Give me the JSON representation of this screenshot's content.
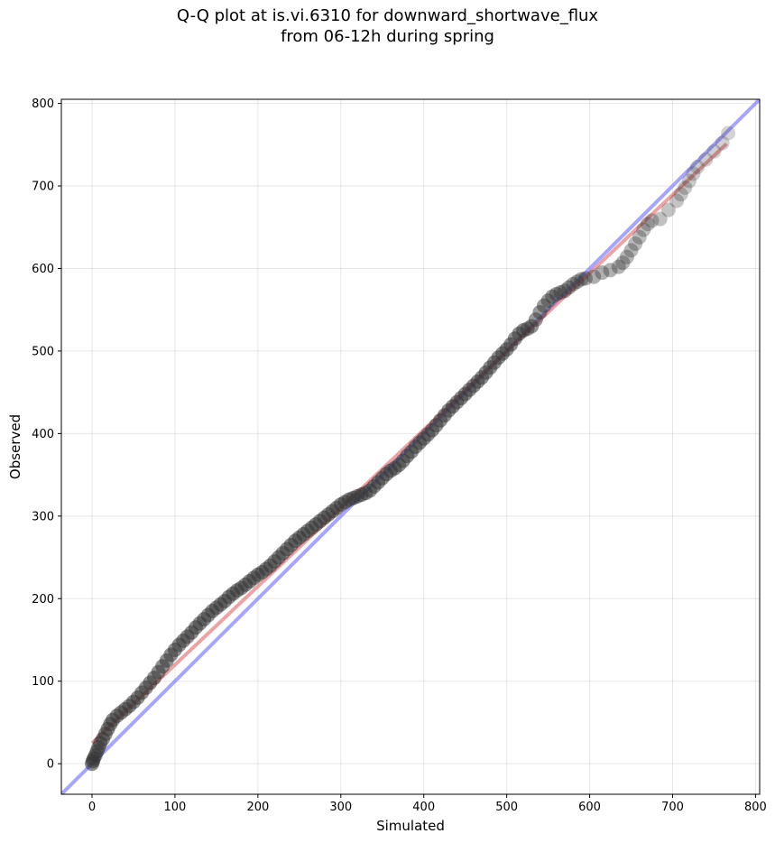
{
  "chart_data": {
    "type": "scatter",
    "title_lines": [
      "Q-Q plot at is.vi.6310 for downward_shortwave_flux",
      "from 06-12h during spring"
    ],
    "xlabel": "Simulated",
    "ylabel": "Observed",
    "xlim": [
      -37,
      805
    ],
    "ylim": [
      -37,
      805
    ],
    "x_ticks": [
      0,
      100,
      200,
      300,
      400,
      500,
      600,
      700,
      800
    ],
    "y_ticks": [
      0,
      100,
      200,
      300,
      400,
      500,
      600,
      700,
      800
    ],
    "grid": true,
    "series": [
      {
        "marker": "circle",
        "color": "#333333",
        "points": [
          [
            0,
            0
          ],
          [
            1,
            3
          ],
          [
            2,
            6
          ],
          [
            4,
            10
          ],
          [
            6,
            15
          ],
          [
            8,
            20
          ],
          [
            10,
            25
          ],
          [
            13,
            30
          ],
          [
            16,
            36
          ],
          [
            19,
            42
          ],
          [
            22,
            48
          ],
          [
            25,
            53
          ],
          [
            30,
            58
          ],
          [
            35,
            62
          ],
          [
            40,
            66
          ],
          [
            45,
            70
          ],
          [
            50,
            75
          ],
          [
            55,
            80
          ],
          [
            60,
            86
          ],
          [
            65,
            92
          ],
          [
            70,
            98
          ],
          [
            75,
            104
          ],
          [
            80,
            111
          ],
          [
            85,
            118
          ],
          [
            90,
            125
          ],
          [
            95,
            132
          ],
          [
            100,
            138
          ],
          [
            105,
            144
          ],
          [
            110,
            149
          ],
          [
            115,
            154
          ],
          [
            120,
            159
          ],
          [
            125,
            165
          ],
          [
            130,
            170
          ],
          [
            135,
            175
          ],
          [
            140,
            180
          ],
          [
            145,
            185
          ],
          [
            150,
            189
          ],
          [
            155,
            193
          ],
          [
            160,
            197
          ],
          [
            165,
            202
          ],
          [
            170,
            206
          ],
          [
            175,
            210
          ],
          [
            180,
            213
          ],
          [
            185,
            217
          ],
          [
            190,
            221
          ],
          [
            195,
            225
          ],
          [
            200,
            229
          ],
          [
            205,
            232
          ],
          [
            210,
            236
          ],
          [
            215,
            240
          ],
          [
            220,
            245
          ],
          [
            225,
            250
          ],
          [
            230,
            255
          ],
          [
            235,
            260
          ],
          [
            240,
            265
          ],
          [
            245,
            270
          ],
          [
            250,
            274
          ],
          [
            255,
            278
          ],
          [
            260,
            282
          ],
          [
            265,
            286
          ],
          [
            270,
            290
          ],
          [
            275,
            294
          ],
          [
            280,
            298
          ],
          [
            285,
            302
          ],
          [
            290,
            306
          ],
          [
            295,
            310
          ],
          [
            300,
            314
          ],
          [
            305,
            317
          ],
          [
            310,
            320
          ],
          [
            315,
            322
          ],
          [
            320,
            324
          ],
          [
            325,
            326
          ],
          [
            330,
            328
          ],
          [
            335,
            331
          ],
          [
            340,
            336
          ],
          [
            345,
            341
          ],
          [
            350,
            346
          ],
          [
            355,
            351
          ],
          [
            360,
            355
          ],
          [
            365,
            358
          ],
          [
            370,
            362
          ],
          [
            375,
            367
          ],
          [
            380,
            373
          ],
          [
            385,
            378
          ],
          [
            390,
            384
          ],
          [
            395,
            389
          ],
          [
            400,
            394
          ],
          [
            405,
            399
          ],
          [
            410,
            404
          ],
          [
            415,
            410
          ],
          [
            420,
            416
          ],
          [
            425,
            422
          ],
          [
            430,
            428
          ],
          [
            435,
            433
          ],
          [
            440,
            438
          ],
          [
            445,
            443
          ],
          [
            450,
            448
          ],
          [
            455,
            453
          ],
          [
            460,
            458
          ],
          [
            465,
            463
          ],
          [
            470,
            468
          ],
          [
            475,
            474
          ],
          [
            480,
            480
          ],
          [
            485,
            486
          ],
          [
            490,
            492
          ],
          [
            495,
            497
          ],
          [
            500,
            502
          ],
          [
            505,
            508
          ],
          [
            510,
            515
          ],
          [
            515,
            521
          ],
          [
            520,
            525
          ],
          [
            525,
            527
          ],
          [
            530,
            530
          ],
          [
            535,
            538
          ],
          [
            540,
            547
          ],
          [
            545,
            555
          ],
          [
            550,
            561
          ],
          [
            555,
            566
          ],
          [
            560,
            569
          ],
          [
            565,
            571
          ],
          [
            570,
            573
          ],
          [
            575,
            577
          ],
          [
            580,
            581
          ],
          [
            585,
            584
          ],
          [
            590,
            587
          ],
          [
            595,
            588
          ],
          [
            605,
            590
          ],
          [
            615,
            595
          ],
          [
            625,
            598
          ],
          [
            635,
            602
          ],
          [
            640,
            607
          ],
          [
            645,
            614
          ],
          [
            650,
            622
          ],
          [
            655,
            630
          ],
          [
            660,
            638
          ],
          [
            665,
            647
          ],
          [
            670,
            654
          ],
          [
            675,
            658
          ],
          [
            685,
            660
          ],
          [
            695,
            671
          ],
          [
            705,
            682
          ],
          [
            710,
            690
          ],
          [
            715,
            698
          ],
          [
            720,
            706
          ],
          [
            725,
            715
          ],
          [
            730,
            723
          ],
          [
            740,
            732
          ],
          [
            750,
            742
          ],
          [
            760,
            752
          ],
          [
            767,
            764
          ]
        ]
      }
    ],
    "fit_line": {
      "color": "#e06666",
      "x": [
        0,
        765
      ],
      "y": [
        25,
        751
      ]
    },
    "identity_line": {
      "color": "#8080ff"
    }
  }
}
